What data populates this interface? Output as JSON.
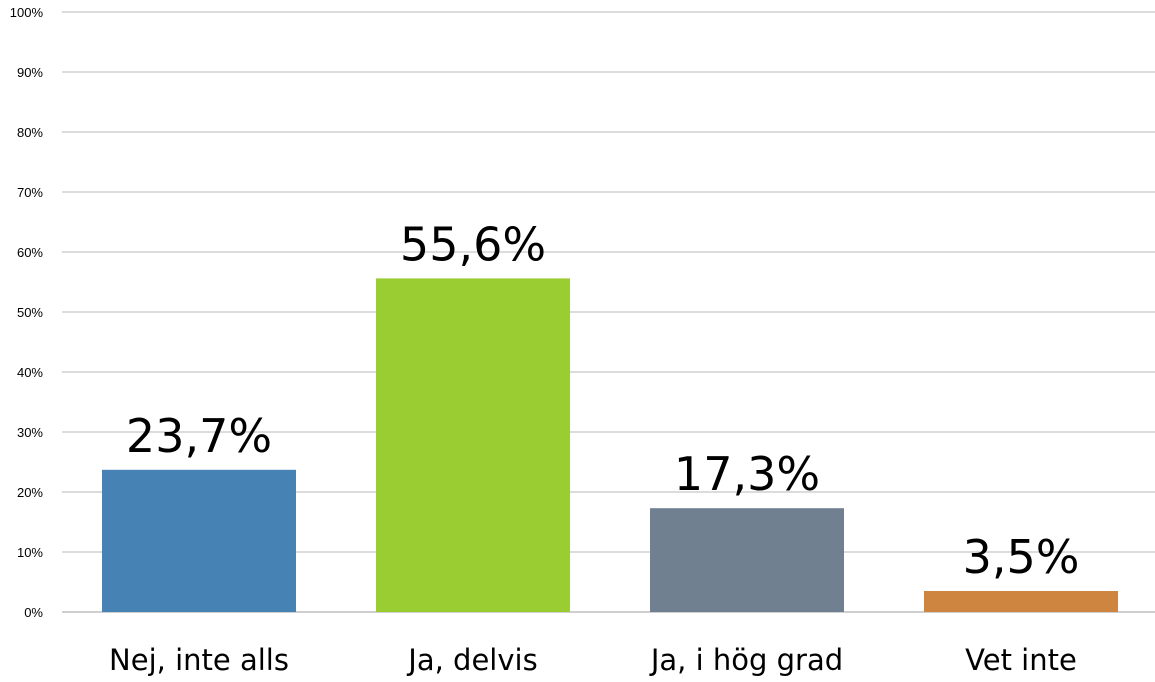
{
  "chart_data": {
    "type": "bar",
    "title": "",
    "xlabel": "",
    "ylabel": "",
    "categories": [
      "Nej, inte alls",
      "Ja, delvis",
      "Ja, i hög grad",
      "Vet inte"
    ],
    "values": [
      23.7,
      55.6,
      17.3,
      3.5
    ],
    "value_labels": [
      "23,7%",
      "55,6%",
      "17,3%",
      "3,5%"
    ],
    "colors": [
      "#4682b4",
      "#9acd32",
      "#708090",
      "#cd853f"
    ],
    "ylim": [
      0,
      100
    ],
    "y_ticks": [
      0,
      10,
      20,
      30,
      40,
      50,
      60,
      70,
      80,
      90,
      100
    ],
    "y_tick_labels": [
      "0%",
      "10%",
      "20%",
      "30%",
      "40%",
      "50%",
      "60%",
      "70%",
      "80%",
      "90%",
      "100%"
    ],
    "grid": true,
    "legend": "none"
  }
}
